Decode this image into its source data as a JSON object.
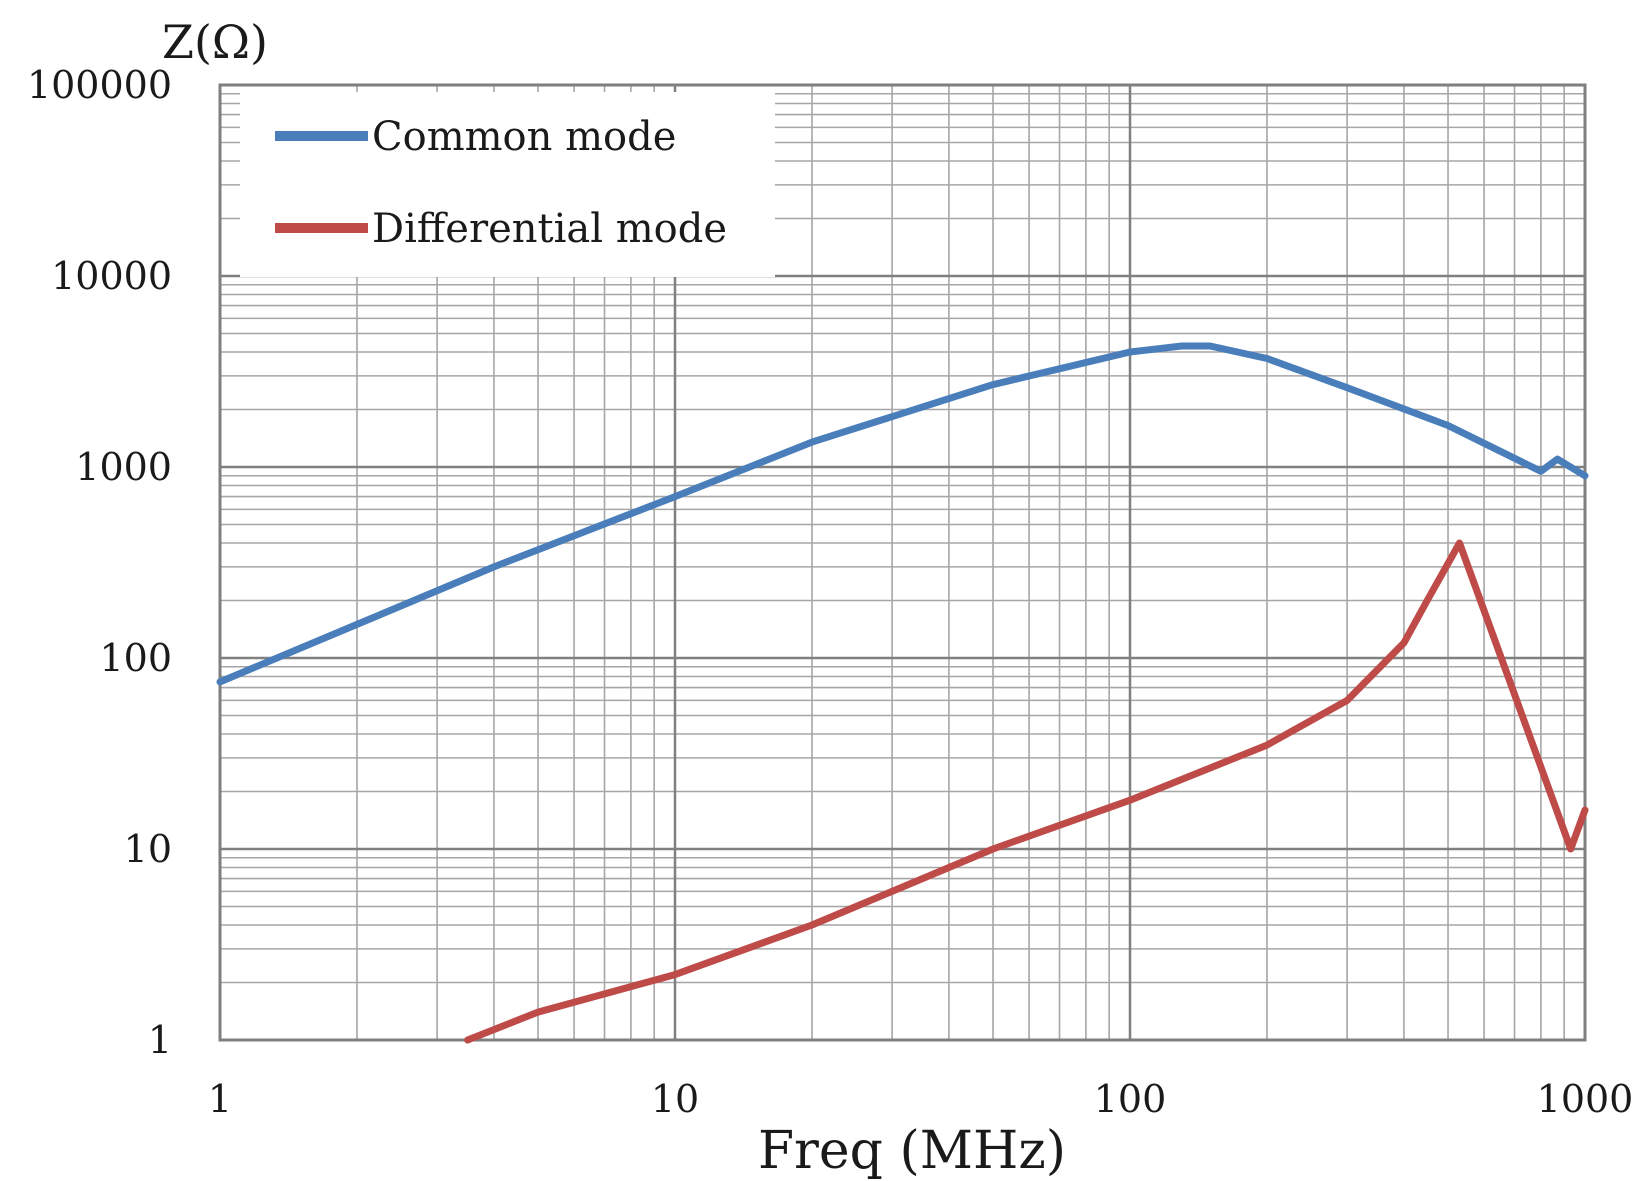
{
  "chart_data": {
    "type": "line",
    "title": "",
    "xlabel": "Freq (MHz)",
    "ylabel": "Z(Ω)",
    "x_scale": "log",
    "y_scale": "log",
    "xlim": [
      1,
      1000
    ],
    "ylim": [
      1,
      100000
    ],
    "x_ticks": [
      "1",
      "10",
      "100",
      "1000"
    ],
    "y_ticks": [
      "1",
      "10",
      "100",
      "1000",
      "10000",
      "100000"
    ],
    "grid": true,
    "legend_position": "top-left",
    "series": [
      {
        "name": "Common mode",
        "color": "#4a7ebb",
        "x": [
          1,
          2,
          4,
          10,
          20,
          50,
          100,
          130,
          150,
          200,
          300,
          500,
          800,
          870,
          1000
        ],
        "y": [
          75,
          150,
          300,
          700,
          1350,
          2700,
          4000,
          4300,
          4300,
          3700,
          2600,
          1650,
          950,
          1100,
          900
        ]
      },
      {
        "name": "Differential mode",
        "color": "#be4b48",
        "x": [
          3.5,
          5,
          10,
          20,
          50,
          100,
          200,
          300,
          400,
          450,
          530,
          930,
          1000
        ],
        "y": [
          1,
          1.4,
          2.2,
          4,
          10,
          18,
          35,
          60,
          120,
          200,
          400,
          10,
          16
        ]
      }
    ]
  }
}
